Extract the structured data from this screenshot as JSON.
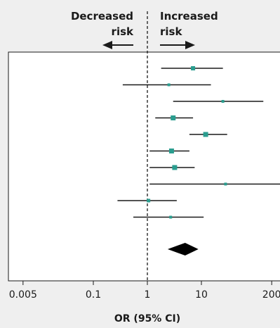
{
  "chart_data": {
    "type": "forest",
    "xlabel": "OR (95% CI)",
    "x_scale": "log",
    "xlim": [
      0.003,
      500
    ],
    "x_ticks": [
      0.005,
      0.1,
      1,
      10,
      200
    ],
    "x_tick_labels": [
      "0.005",
      "0.1",
      "1",
      "10",
      "200"
    ],
    "reference_line": 1,
    "direction_labels": {
      "left": [
        "Decreased",
        "risk"
      ],
      "right": [
        "Increased",
        "risk"
      ]
    },
    "studies": [
      {
        "or": 7.0,
        "ci_low": 1.8,
        "ci_high": 25.0,
        "marker_size": 6
      },
      {
        "or": 2.5,
        "ci_low": 0.35,
        "ci_high": 15.0,
        "marker_size": 4
      },
      {
        "or": 25.0,
        "ci_low": 3.0,
        "ci_high": 140.0,
        "marker_size": 4
      },
      {
        "or": 3.0,
        "ci_low": 1.4,
        "ci_high": 7.0,
        "marker_size": 7
      },
      {
        "or": 12.0,
        "ci_low": 6.0,
        "ci_high": 30.0,
        "marker_size": 7
      },
      {
        "or": 2.8,
        "ci_low": 1.1,
        "ci_high": 6.0,
        "marker_size": 7
      },
      {
        "or": 3.2,
        "ci_low": 1.1,
        "ci_high": 7.5,
        "marker_size": 7
      },
      {
        "or": 28.0,
        "ci_low": 1.1,
        "ci_high": 500.0,
        "marker_size": 4,
        "ci_truncated_high": true
      },
      {
        "or": 1.05,
        "ci_low": 0.28,
        "ci_high": 3.5,
        "marker_size": 5
      },
      {
        "or": 2.7,
        "ci_low": 0.55,
        "ci_high": 11.0,
        "marker_size": 4
      }
    ],
    "pooled": {
      "or": 5.0,
      "ci_low": 3.2,
      "ci_high": 7.8
    },
    "colors": {
      "marker": "#2a9d8f",
      "lines": "#1a1a1a",
      "diamond": "#000000",
      "panel": "#ffffff",
      "background": "#efefef"
    }
  }
}
